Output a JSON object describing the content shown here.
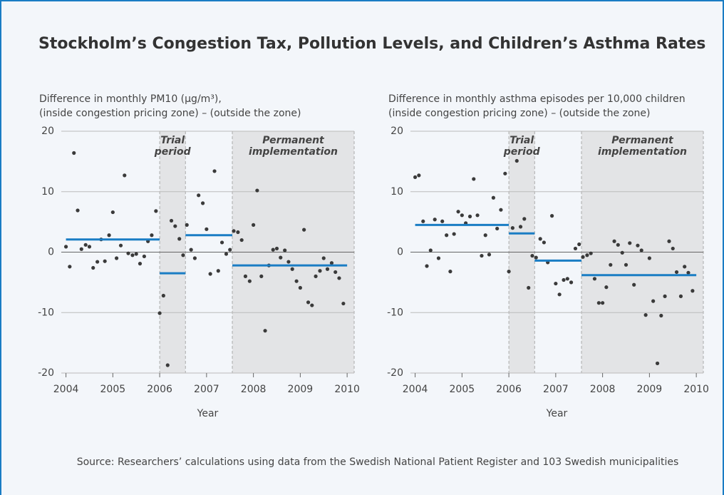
{
  "title": "Stockholm’s Congestion Tax, Pollution Levels, and Children’s Asthma Rates",
  "source": "Source: Researchers’ calculations using data from the Swedish National Patient Register and 103 Swedish municipalities",
  "chart_data": [
    {
      "type": "scatter",
      "ylabel": [
        "Difference in monthly PM10 (µg/m³),",
        "(inside congestion pricing zone) – (outside the zone)"
      ],
      "xlabel": "Year",
      "xlim": [
        2003.9,
        2010.15
      ],
      "ylim": [
        -20,
        20
      ],
      "xticks": [
        2004,
        2005,
        2006,
        2007,
        2008,
        2009,
        2010
      ],
      "yticks": [
        -20,
        -10,
        0,
        10,
        20
      ],
      "grid": true,
      "color": "#3a3a3a",
      "mean_color": "#1a7dc4",
      "periods": [
        {
          "label": [
            "Trial",
            "period"
          ],
          "start": 2006,
          "end": 2006.55
        },
        {
          "label": [
            "Permanent",
            "implementation"
          ],
          "start": 2007.55,
          "end": 2010.15
        }
      ],
      "segments": [
        {
          "start": 2004,
          "end": 2006,
          "value": 2.1
        },
        {
          "start": 2006,
          "end": 2006.55,
          "value": -3.5
        },
        {
          "start": 2006.55,
          "end": 2007.55,
          "value": 2.8
        },
        {
          "start": 2007.55,
          "end": 2010,
          "value": -2.2
        }
      ],
      "x": [
        2004,
        2004.08,
        2004.17,
        2004.25,
        2004.33,
        2004.42,
        2004.5,
        2004.58,
        2004.67,
        2004.75,
        2004.83,
        2004.92,
        2005,
        2005.08,
        2005.17,
        2005.25,
        2005.33,
        2005.42,
        2005.5,
        2005.58,
        2005.67,
        2005.75,
        2005.83,
        2005.92,
        2006,
        2006.08,
        2006.17,
        2006.25,
        2006.33,
        2006.42,
        2006.5,
        2006.58,
        2006.67,
        2006.75,
        2006.83,
        2006.92,
        2007,
        2007.08,
        2007.17,
        2007.25,
        2007.33,
        2007.42,
        2007.5,
        2007.58,
        2007.67,
        2007.75,
        2007.83,
        2007.92,
        2008,
        2008.08,
        2008.17,
        2008.25,
        2008.33,
        2008.42,
        2008.5,
        2008.58,
        2008.67,
        2008.75,
        2008.83,
        2008.92,
        2009,
        2009.08,
        2009.17,
        2009.25,
        2009.33,
        2009.42,
        2009.5,
        2009.58,
        2009.67,
        2009.75,
        2009.83,
        2009.92
      ],
      "values": [
        0.9,
        -2.4,
        16.4,
        6.9,
        0.5,
        1.2,
        0.9,
        -2.6,
        -1.6,
        2.1,
        -1.5,
        2.8,
        6.6,
        -1.0,
        1.1,
        12.7,
        -0.2,
        -0.5,
        -0.3,
        -1.9,
        -0.7,
        1.8,
        2.8,
        6.8,
        -10.1,
        -7.2,
        -18.7,
        5.2,
        4.3,
        2.2,
        -0.5,
        4.5,
        0.4,
        -1.0,
        9.4,
        8.1,
        3.8,
        -3.6,
        13.4,
        -3.1,
        1.6,
        -0.3,
        0.4,
        3.5,
        3.3,
        2.0,
        -4.0,
        -4.8,
        4.5,
        10.2,
        -4.0,
        -13.0,
        -2.2,
        0.4,
        0.6,
        -0.9,
        0.3,
        -1.6,
        -2.8,
        -4.8,
        -5.9,
        3.7,
        -8.3,
        -8.8,
        -4.0,
        -3.1,
        -1.0,
        -2.8,
        -1.8,
        -3.3,
        -4.3,
        -8.5
      ]
    },
    {
      "type": "scatter",
      "ylabel": [
        "Difference in monthly asthma episodes per 10,000 children",
        "(inside congestion pricing zone) – (outside the zone)"
      ],
      "xlabel": "Year",
      "xlim": [
        2003.9,
        2010.15
      ],
      "ylim": [
        -20,
        20
      ],
      "xticks": [
        2004,
        2005,
        2006,
        2007,
        2008,
        2009,
        2010
      ],
      "yticks": [
        -20,
        -10,
        0,
        10,
        20
      ],
      "grid": true,
      "color": "#3a3a3a",
      "mean_color": "#1a7dc4",
      "periods": [
        {
          "label": [
            "Trial",
            "period"
          ],
          "start": 2006,
          "end": 2006.55
        },
        {
          "label": [
            "Permanent",
            "implementation"
          ],
          "start": 2007.55,
          "end": 2010.15
        }
      ],
      "segments": [
        {
          "start": 2004,
          "end": 2006,
          "value": 4.5
        },
        {
          "start": 2006,
          "end": 2006.55,
          "value": 3.1
        },
        {
          "start": 2006.55,
          "end": 2007.55,
          "value": -1.4
        },
        {
          "start": 2007.55,
          "end": 2010,
          "value": -3.8
        }
      ],
      "x": [
        2004,
        2004.08,
        2004.17,
        2004.25,
        2004.33,
        2004.42,
        2004.5,
        2004.58,
        2004.67,
        2004.75,
        2004.83,
        2004.92,
        2005,
        2005.08,
        2005.17,
        2005.25,
        2005.33,
        2005.42,
        2005.5,
        2005.58,
        2005.67,
        2005.75,
        2005.83,
        2005.92,
        2006,
        2006.08,
        2006.17,
        2006.25,
        2006.33,
        2006.42,
        2006.5,
        2006.58,
        2006.67,
        2006.75,
        2006.83,
        2006.92,
        2007,
        2007.08,
        2007.17,
        2007.25,
        2007.33,
        2007.42,
        2007.5,
        2007.58,
        2007.67,
        2007.75,
        2007.83,
        2007.92,
        2008,
        2008.08,
        2008.17,
        2008.25,
        2008.33,
        2008.42,
        2008.5,
        2008.58,
        2008.67,
        2008.75,
        2008.83,
        2008.92,
        2009,
        2009.08,
        2009.17,
        2009.25,
        2009.33,
        2009.42,
        2009.5,
        2009.58,
        2009.67,
        2009.75,
        2009.83,
        2009.92
      ],
      "values": [
        12.4,
        12.7,
        5.1,
        -2.3,
        0.3,
        5.4,
        -1.0,
        5.1,
        2.8,
        -3.2,
        3.0,
        6.7,
        6.1,
        4.8,
        5.9,
        12.1,
        6.1,
        -0.6,
        2.8,
        -0.4,
        9.0,
        3.9,
        7.0,
        13.0,
        -3.2,
        4.0,
        15.1,
        4.2,
        5.5,
        -5.9,
        -0.6,
        -0.9,
        2.2,
        1.6,
        -1.7,
        6.0,
        -5.2,
        -7.0,
        -4.6,
        -4.4,
        -5.0,
        0.6,
        1.3,
        -0.8,
        -0.5,
        -0.2,
        -4.4,
        -8.4,
        -8.4,
        -5.8,
        -2.1,
        1.8,
        1.2,
        -0.1,
        -2.1,
        1.5,
        -5.4,
        1.1,
        0.3,
        -10.4,
        -1.0,
        -8.1,
        -18.4,
        -10.5,
        -7.3,
        1.8,
        0.6,
        -3.3,
        -7.3,
        -2.4,
        -3.4,
        -6.4
      ]
    }
  ]
}
